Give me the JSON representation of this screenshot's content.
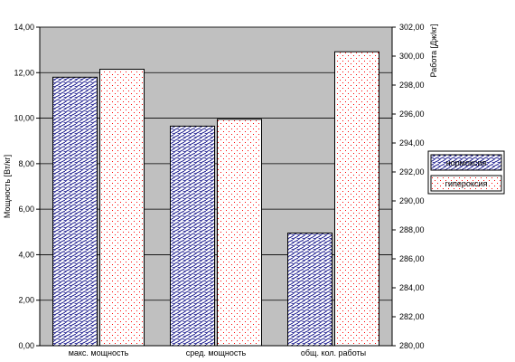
{
  "chart_data": {
    "type": "bar",
    "categories": [
      "макс. мощность",
      "сред. мощность",
      "общ. кол. работы"
    ],
    "series": [
      {
        "name": "нормоксия",
        "values": [
          11.8,
          9.65,
          4.95
        ],
        "axis": "left"
      },
      {
        "name": "гипероксия",
        "values": [
          12.15,
          9.95,
          300.3
        ],
        "axis": "mixed"
      }
    ],
    "ylabel_left": "Мощность [Вт/кг]",
    "ylabel_right": "Работа [Дж/кг]",
    "ylim_left": [
      0,
      14
    ],
    "ylim_right": [
      280,
      302
    ],
    "yticks_left": [
      "0,00",
      "2,00",
      "4,00",
      "6,00",
      "8,00",
      "10,00",
      "12,00",
      "14,00"
    ],
    "yticks_right": [
      "280,00",
      "282,00",
      "284,00",
      "286,00",
      "288,00",
      "290,00",
      "292,00",
      "294,00",
      "296,00",
      "298,00",
      "300,00",
      "302,00"
    ],
    "grid": true,
    "legend_position": "right",
    "colors": {
      "plot_bg": "#c0c0c0",
      "normoxia_hatch": "#000080",
      "hyperoxia_dots": "#ff0000",
      "bar_fill": "#ffffff",
      "gridline": "#000000"
    }
  }
}
